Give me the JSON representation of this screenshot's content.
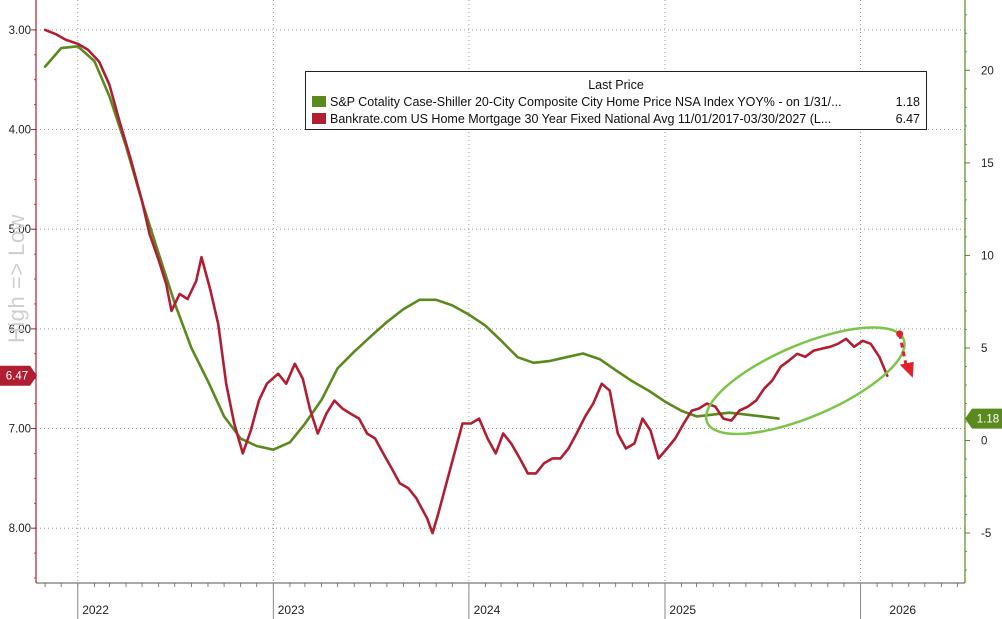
{
  "chart_data": {
    "type": "line",
    "legend_title": "Last Price",
    "watermark": "High => Low",
    "x_labels": [
      "2022",
      "2023",
      "2024",
      "2025",
      "2026"
    ],
    "left_axis": {
      "ticks": [
        "3.00",
        "4.00",
        "5.00",
        "6.00",
        "7.00",
        "8.00"
      ],
      "inverted": true,
      "range": [
        2.7,
        8.55
      ]
    },
    "right_axis": {
      "ticks": [
        "-5",
        "0",
        "5",
        "10",
        "15",
        "20"
      ],
      "range": [
        -7.7,
        23.8
      ]
    },
    "series": [
      {
        "name": "S&P Cotality Case-Shiller 20-City Composite City Home Price NSA Index YOY% -  on 1/31/...",
        "last_value": "1.18",
        "color": "#5a8a1e",
        "axis": "right",
        "points": [
          [
            "2021-11-01",
            20.2
          ],
          [
            "2021-12-01",
            21.2
          ],
          [
            "2022-01-01",
            21.3
          ],
          [
            "2022-02-01",
            20.5
          ],
          [
            "2022-03-01",
            18.6
          ],
          [
            "2022-04-01",
            15.9
          ],
          [
            "2022-05-01",
            12.9
          ],
          [
            "2022-06-01",
            10.1
          ],
          [
            "2022-07-01",
            7.4
          ],
          [
            "2022-08-01",
            5.0
          ],
          [
            "2022-09-01",
            3.2
          ],
          [
            "2022-10-01",
            1.3
          ],
          [
            "2022-11-01",
            0.1
          ],
          [
            "2022-12-01",
            -0.3
          ],
          [
            "2023-01-01",
            -0.5
          ],
          [
            "2023-02-01",
            -0.1
          ],
          [
            "2023-03-01",
            0.9
          ],
          [
            "2023-04-01",
            2.2
          ],
          [
            "2023-05-01",
            3.9
          ],
          [
            "2023-06-01",
            4.8
          ],
          [
            "2023-07-01",
            5.6
          ],
          [
            "2023-08-01",
            6.4
          ],
          [
            "2023-09-01",
            7.1
          ],
          [
            "2023-10-01",
            7.6
          ],
          [
            "2023-11-01",
            7.6
          ],
          [
            "2023-12-01",
            7.3
          ],
          [
            "2024-01-01",
            6.8
          ],
          [
            "2024-02-01",
            6.2
          ],
          [
            "2024-03-01",
            5.4
          ],
          [
            "2024-04-01",
            4.5
          ],
          [
            "2024-05-01",
            4.2
          ],
          [
            "2024-06-01",
            4.3
          ],
          [
            "2024-07-01",
            4.5
          ],
          [
            "2024-08-01",
            4.7
          ],
          [
            "2024-09-01",
            4.4
          ],
          [
            "2024-10-01",
            3.8
          ],
          [
            "2024-11-01",
            3.2
          ],
          [
            "2024-12-01",
            2.7
          ],
          [
            "2025-01-01",
            2.1
          ],
          [
            "2025-02-01",
            1.6
          ],
          [
            "2025-03-01",
            1.3
          ],
          [
            "2025-04-01",
            1.4
          ],
          [
            "2025-05-01",
            1.5
          ],
          [
            "2025-06-01",
            1.4
          ],
          [
            "2025-07-01",
            1.3
          ],
          [
            "2025-08-01",
            1.18
          ]
        ]
      },
      {
        "name": "Bankrate.com US Home Mortgage 30 Year Fixed National Avg 11/01/2017-03/30/2027  (L...",
        "last_value": "6.47",
        "color": "#b01e32",
        "axis": "left",
        "points": [
          [
            "2021-11-01",
            3.0
          ],
          [
            "2021-11-20",
            3.04
          ],
          [
            "2021-12-10",
            3.1
          ],
          [
            "2022-01-01",
            3.14
          ],
          [
            "2022-01-20",
            3.2
          ],
          [
            "2022-02-10",
            3.32
          ],
          [
            "2022-03-01",
            3.55
          ],
          [
            "2022-03-20",
            3.92
          ],
          [
            "2022-04-10",
            4.3
          ],
          [
            "2022-05-01",
            4.72
          ],
          [
            "2022-05-15",
            5.05
          ],
          [
            "2022-06-01",
            5.31
          ],
          [
            "2022-06-15",
            5.55
          ],
          [
            "2022-06-25",
            5.82
          ],
          [
            "2022-07-10",
            5.65
          ],
          [
            "2022-07-25",
            5.7
          ],
          [
            "2022-08-10",
            5.52
          ],
          [
            "2022-08-20",
            5.28
          ],
          [
            "2022-09-05",
            5.6
          ],
          [
            "2022-09-20",
            5.95
          ],
          [
            "2022-10-05",
            6.55
          ],
          [
            "2022-10-20",
            6.95
          ],
          [
            "2022-11-05",
            7.25
          ],
          [
            "2022-11-20",
            7.02
          ],
          [
            "2022-12-05",
            6.72
          ],
          [
            "2022-12-20",
            6.55
          ],
          [
            "2023-01-10",
            6.45
          ],
          [
            "2023-01-25",
            6.55
          ],
          [
            "2023-02-10",
            6.35
          ],
          [
            "2023-02-25",
            6.5
          ],
          [
            "2023-03-10",
            6.8
          ],
          [
            "2023-03-25",
            7.05
          ],
          [
            "2023-04-10",
            6.85
          ],
          [
            "2023-04-25",
            6.72
          ],
          [
            "2023-05-10",
            6.8
          ],
          [
            "2023-05-25",
            6.85
          ],
          [
            "2023-06-10",
            6.9
          ],
          [
            "2023-06-25",
            7.05
          ],
          [
            "2023-07-10",
            7.1
          ],
          [
            "2023-07-25",
            7.25
          ],
          [
            "2023-08-10",
            7.4
          ],
          [
            "2023-08-25",
            7.55
          ],
          [
            "2023-09-10",
            7.6
          ],
          [
            "2023-09-25",
            7.7
          ],
          [
            "2023-10-05",
            7.8
          ],
          [
            "2023-10-15",
            7.9
          ],
          [
            "2023-10-25",
            8.05
          ],
          [
            "2023-11-05",
            7.85
          ],
          [
            "2023-11-20",
            7.55
          ],
          [
            "2023-12-05",
            7.25
          ],
          [
            "2023-12-20",
            6.95
          ],
          [
            "2024-01-05",
            6.95
          ],
          [
            "2024-01-20",
            6.9
          ],
          [
            "2024-02-05",
            7.1
          ],
          [
            "2024-02-20",
            7.25
          ],
          [
            "2024-03-05",
            7.05
          ],
          [
            "2024-03-20",
            7.15
          ],
          [
            "2024-04-05",
            7.3
          ],
          [
            "2024-04-20",
            7.45
          ],
          [
            "2024-05-05",
            7.45
          ],
          [
            "2024-05-20",
            7.35
          ],
          [
            "2024-06-05",
            7.3
          ],
          [
            "2024-06-20",
            7.3
          ],
          [
            "2024-07-05",
            7.2
          ],
          [
            "2024-07-20",
            7.05
          ],
          [
            "2024-08-05",
            6.88
          ],
          [
            "2024-08-20",
            6.75
          ],
          [
            "2024-09-05",
            6.55
          ],
          [
            "2024-09-20",
            6.62
          ],
          [
            "2024-10-05",
            7.05
          ],
          [
            "2024-10-20",
            7.2
          ],
          [
            "2024-11-05",
            7.15
          ],
          [
            "2024-11-20",
            6.9
          ],
          [
            "2024-12-05",
            7.02
          ],
          [
            "2024-12-20",
            7.3
          ],
          [
            "2025-01-05",
            7.2
          ],
          [
            "2025-01-20",
            7.1
          ],
          [
            "2025-02-05",
            6.95
          ],
          [
            "2025-02-20",
            6.82
          ],
          [
            "2025-03-05",
            6.8
          ],
          [
            "2025-03-20",
            6.75
          ],
          [
            "2025-04-05",
            6.78
          ],
          [
            "2025-04-20",
            6.9
          ],
          [
            "2025-05-05",
            6.92
          ],
          [
            "2025-05-20",
            6.82
          ],
          [
            "2025-06-05",
            6.78
          ],
          [
            "2025-06-20",
            6.72
          ],
          [
            "2025-07-05",
            6.6
          ],
          [
            "2025-07-20",
            6.52
          ],
          [
            "2025-08-05",
            6.38
          ],
          [
            "2025-08-20",
            6.32
          ],
          [
            "2025-09-05",
            6.25
          ],
          [
            "2025-09-20",
            6.28
          ],
          [
            "2025-10-05",
            6.22
          ],
          [
            "2025-10-20",
            6.2
          ],
          [
            "2025-11-05",
            6.18
          ],
          [
            "2025-11-20",
            6.15
          ],
          [
            "2025-12-05",
            6.1
          ],
          [
            "2025-12-20",
            6.18
          ],
          [
            "2026-01-05",
            6.12
          ],
          [
            "2026-01-20",
            6.15
          ],
          [
            "2026-02-05",
            6.28
          ],
          [
            "2026-02-20",
            6.47
          ]
        ]
      }
    ]
  }
}
